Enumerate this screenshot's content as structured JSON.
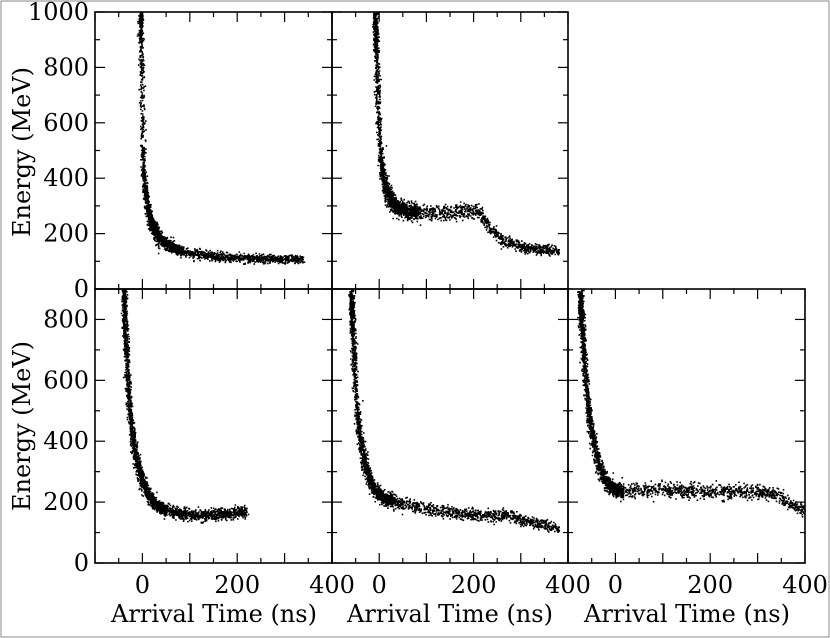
{
  "chart_data": {
    "type": "scatter",
    "shared_labels": {
      "ylabel": "Energy (MeV)",
      "xlabel": "Arrival Time (ns)"
    },
    "x_ticks": [
      0,
      200,
      400
    ],
    "x_range": [
      -100,
      400
    ],
    "panels": [
      {
        "id": "top-left",
        "ylim": [
          0,
          1000
        ],
        "y_ticks": [
          0,
          200,
          400,
          600,
          800,
          1000
        ],
        "x_tick_labels_shown": false,
        "y_tick_labels_shown": true,
        "curve": [
          [
            -5,
            1000
          ],
          [
            -4,
            900
          ],
          [
            -3,
            800
          ],
          [
            -2,
            700
          ],
          [
            -1,
            600
          ],
          [
            0,
            500
          ],
          [
            2,
            420
          ],
          [
            5,
            350
          ],
          [
            10,
            290
          ],
          [
            18,
            240
          ],
          [
            30,
            200
          ],
          [
            45,
            170
          ],
          [
            70,
            145
          ],
          [
            100,
            130
          ],
          [
            150,
            120
          ],
          [
            200,
            115
          ],
          [
            250,
            112
          ],
          [
            300,
            110
          ],
          [
            340,
            108
          ]
        ]
      },
      {
        "id": "top-middle",
        "ylim": [
          0,
          1000
        ],
        "y_ticks": [
          0,
          200,
          400,
          600,
          800,
          1000
        ],
        "x_tick_labels_shown": false,
        "y_tick_labels_shown": false,
        "curve": [
          [
            -10,
            1000
          ],
          [
            -8,
            900
          ],
          [
            -6,
            800
          ],
          [
            -4,
            700
          ],
          [
            -2,
            600
          ],
          [
            0,
            520
          ],
          [
            5,
            440
          ],
          [
            10,
            380
          ],
          [
            20,
            330
          ],
          [
            35,
            300
          ],
          [
            60,
            285
          ],
          [
            100,
            275
          ],
          [
            150,
            278
          ],
          [
            200,
            285
          ],
          [
            210,
            280
          ],
          [
            230,
            230
          ],
          [
            260,
            180
          ],
          [
            300,
            155
          ],
          [
            340,
            145
          ],
          [
            380,
            140
          ]
        ]
      },
      {
        "id": "bottom-left",
        "ylim": [
          0,
          900
        ],
        "y_ticks": [
          0,
          200,
          400,
          600,
          800
        ],
        "x_tick_labels_shown": true,
        "y_tick_labels_shown": true,
        "curve": [
          [
            -40,
            880
          ],
          [
            -38,
            800
          ],
          [
            -35,
            700
          ],
          [
            -32,
            600
          ],
          [
            -28,
            500
          ],
          [
            -22,
            420
          ],
          [
            -15,
            350
          ],
          [
            -5,
            290
          ],
          [
            10,
            230
          ],
          [
            25,
            195
          ],
          [
            45,
            175
          ],
          [
            70,
            165
          ],
          [
            100,
            160
          ],
          [
            140,
            160
          ],
          [
            180,
            165
          ],
          [
            220,
            170
          ]
        ]
      },
      {
        "id": "bottom-middle",
        "ylim": [
          0,
          900
        ],
        "y_ticks": [
          0,
          200,
          400,
          600,
          800
        ],
        "x_tick_labels_shown": true,
        "y_tick_labels_shown": false,
        "curve": [
          [
            -60,
            870
          ],
          [
            -58,
            800
          ],
          [
            -55,
            700
          ],
          [
            -52,
            600
          ],
          [
            -48,
            500
          ],
          [
            -42,
            420
          ],
          [
            -35,
            350
          ],
          [
            -25,
            290
          ],
          [
            -10,
            240
          ],
          [
            10,
            215
          ],
          [
            40,
            200
          ],
          [
            80,
            185
          ],
          [
            120,
            175
          ],
          [
            160,
            165
          ],
          [
            200,
            160
          ],
          [
            240,
            160
          ],
          [
            270,
            160
          ],
          [
            300,
            145
          ],
          [
            340,
            130
          ],
          [
            380,
            115
          ]
        ]
      },
      {
        "id": "bottom-right",
        "ylim": [
          0,
          900
        ],
        "y_ticks": [
          0,
          200,
          400,
          600,
          800
        ],
        "x_tick_labels_shown": true,
        "y_tick_labels_shown": false,
        "curve": [
          [
            -75,
            860
          ],
          [
            -72,
            800
          ],
          [
            -68,
            700
          ],
          [
            -64,
            600
          ],
          [
            -58,
            500
          ],
          [
            -50,
            420
          ],
          [
            -40,
            350
          ],
          [
            -28,
            290
          ],
          [
            -15,
            255
          ],
          [
            0,
            240
          ],
          [
            20,
            238
          ],
          [
            60,
            240
          ],
          [
            100,
            240
          ],
          [
            150,
            238
          ],
          [
            200,
            238
          ],
          [
            250,
            238
          ],
          [
            300,
            235
          ],
          [
            340,
            232
          ],
          [
            350,
            215
          ],
          [
            370,
            190
          ],
          [
            400,
            175
          ]
        ]
      }
    ]
  }
}
